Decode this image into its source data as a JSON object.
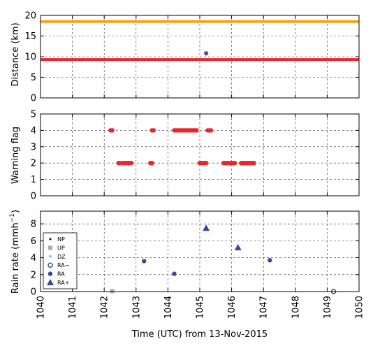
{
  "chart_data": [
    {
      "type": "scatter",
      "ylabel": "Distance (km)",
      "ylim": [
        0,
        20
      ],
      "yticks": [
        0,
        5,
        10,
        15,
        20
      ],
      "xlim": [
        1040,
        1050
      ],
      "grid": true,
      "hlines": [
        {
          "y": 18.5,
          "color": "#f5a623"
        },
        {
          "y": 9.3,
          "color": "#e8262d"
        }
      ],
      "points": [
        {
          "x": 1045.2,
          "y": 10.8,
          "color": "#6a4f8f"
        }
      ]
    },
    {
      "type": "scatter",
      "ylabel": "Warning flag",
      "ylim": [
        0,
        5
      ],
      "yticks": [
        0,
        1,
        2,
        3,
        4,
        5
      ],
      "xlim": [
        1040,
        1050
      ],
      "grid": true,
      "color": "#e8262d",
      "points": [
        {
          "x": 1042.2,
          "y": 4
        },
        {
          "x": 1042.25,
          "y": 4
        },
        {
          "x": 1042.45,
          "y": 2
        },
        {
          "x": 1042.5,
          "y": 2
        },
        {
          "x": 1042.6,
          "y": 2
        },
        {
          "x": 1042.65,
          "y": 2
        },
        {
          "x": 1042.7,
          "y": 2
        },
        {
          "x": 1042.75,
          "y": 2
        },
        {
          "x": 1042.8,
          "y": 2
        },
        {
          "x": 1042.85,
          "y": 2
        },
        {
          "x": 1043.45,
          "y": 2
        },
        {
          "x": 1043.5,
          "y": 2
        },
        {
          "x": 1043.5,
          "y": 4
        },
        {
          "x": 1043.55,
          "y": 4
        },
        {
          "x": 1044.2,
          "y": 4
        },
        {
          "x": 1044.25,
          "y": 4
        },
        {
          "x": 1044.3,
          "y": 4
        },
        {
          "x": 1044.35,
          "y": 4
        },
        {
          "x": 1044.4,
          "y": 4
        },
        {
          "x": 1044.45,
          "y": 4
        },
        {
          "x": 1044.5,
          "y": 4
        },
        {
          "x": 1044.55,
          "y": 4
        },
        {
          "x": 1044.6,
          "y": 4
        },
        {
          "x": 1044.65,
          "y": 4
        },
        {
          "x": 1044.7,
          "y": 4
        },
        {
          "x": 1044.75,
          "y": 4
        },
        {
          "x": 1044.8,
          "y": 4
        },
        {
          "x": 1044.85,
          "y": 4
        },
        {
          "x": 1044.9,
          "y": 4
        },
        {
          "x": 1045.0,
          "y": 2
        },
        {
          "x": 1045.05,
          "y": 2
        },
        {
          "x": 1045.1,
          "y": 2
        },
        {
          "x": 1045.15,
          "y": 2
        },
        {
          "x": 1045.2,
          "y": 2
        },
        {
          "x": 1045.25,
          "y": 4
        },
        {
          "x": 1045.3,
          "y": 4
        },
        {
          "x": 1045.35,
          "y": 4
        },
        {
          "x": 1045.75,
          "y": 2
        },
        {
          "x": 1045.8,
          "y": 2
        },
        {
          "x": 1045.85,
          "y": 2
        },
        {
          "x": 1045.9,
          "y": 2
        },
        {
          "x": 1045.95,
          "y": 2
        },
        {
          "x": 1046.0,
          "y": 2
        },
        {
          "x": 1046.05,
          "y": 2
        },
        {
          "x": 1046.1,
          "y": 2
        },
        {
          "x": 1046.3,
          "y": 2
        },
        {
          "x": 1046.35,
          "y": 2
        },
        {
          "x": 1046.4,
          "y": 2
        },
        {
          "x": 1046.45,
          "y": 2
        },
        {
          "x": 1046.5,
          "y": 2
        },
        {
          "x": 1046.55,
          "y": 2
        },
        {
          "x": 1046.6,
          "y": 2
        },
        {
          "x": 1046.65,
          "y": 2
        },
        {
          "x": 1046.7,
          "y": 2
        }
      ]
    },
    {
      "type": "scatter",
      "ylabel": "Rain rate (mmh",
      "ylabel_sup": "−1",
      "ylabel_tail": ")",
      "xlabel": "Time (UTC) from 13-Nov-2015",
      "ylim": [
        0,
        9.5
      ],
      "yticks": [
        0,
        2,
        4,
        6,
        8
      ],
      "xlim": [
        1040,
        1050
      ],
      "xticks": [
        1040,
        1041,
        1042,
        1043,
        1044,
        1045,
        1046,
        1047,
        1048,
        1049,
        1050
      ],
      "grid": true,
      "legend": {
        "position": "lower-left",
        "entries": [
          {
            "label": "NP",
            "marker": "dot",
            "color": "#000000"
          },
          {
            "label": "UP",
            "marker": "square",
            "color": "#aaaaaa"
          },
          {
            "label": "DZ",
            "marker": "smalldot",
            "color": "#8fd0e8"
          },
          {
            "label": "RA−",
            "marker": "open-circle",
            "color": "#2e4a9e"
          },
          {
            "label": "RA",
            "marker": "circle",
            "color": "#2e4a9e"
          },
          {
            "label": "RA+",
            "marker": "triangle",
            "color": "#2e4a9e"
          }
        ]
      },
      "series": [
        {
          "name": "UP",
          "marker": "square",
          "color": "#aaaaaa",
          "points": [
            {
              "x": 1042.25,
              "y": 0.05
            }
          ]
        },
        {
          "name": "RA−",
          "marker": "open-circle",
          "color": "#2e4a9e",
          "points": [
            {
              "x": 1049.2,
              "y": 0.0
            }
          ]
        },
        {
          "name": "RA",
          "marker": "circle",
          "color": "#2e4a9e",
          "points": [
            {
              "x": 1043.25,
              "y": 3.6
            },
            {
              "x": 1044.2,
              "y": 2.1
            },
            {
              "x": 1047.2,
              "y": 3.7
            }
          ]
        },
        {
          "name": "RA+",
          "marker": "triangle",
          "color": "#2e4a9e",
          "points": [
            {
              "x": 1045.2,
              "y": 7.5
            },
            {
              "x": 1046.2,
              "y": 5.2
            }
          ]
        }
      ]
    }
  ]
}
